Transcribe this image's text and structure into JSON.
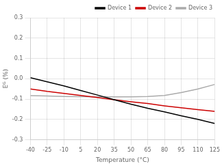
{
  "chart_data": {
    "type": "line",
    "xlabel": "Temperature (°C)",
    "ylabel": "Eᴳ (%)",
    "x": [
      -40,
      -25,
      -10,
      5,
      20,
      35,
      50,
      65,
      80,
      95,
      110,
      125
    ],
    "series": [
      {
        "name": "Device 1",
        "color": "#000000",
        "values": [
          0.005,
          -0.015,
          -0.035,
          -0.058,
          -0.08,
          -0.103,
          -0.125,
          -0.145,
          -0.163,
          -0.182,
          -0.2,
          -0.22
        ]
      },
      {
        "name": "Device 2",
        "color": "#cc0000",
        "values": [
          -0.05,
          -0.062,
          -0.072,
          -0.082,
          -0.092,
          -0.103,
          -0.113,
          -0.122,
          -0.133,
          -0.143,
          -0.152,
          -0.16
        ]
      },
      {
        "name": "Device 3",
        "color": "#aaaaaa",
        "values": [
          -0.083,
          -0.085,
          -0.087,
          -0.088,
          -0.089,
          -0.089,
          -0.089,
          -0.087,
          -0.082,
          -0.068,
          -0.05,
          -0.028
        ]
      }
    ],
    "xlim": [
      -40,
      125
    ],
    "ylim": [
      -0.3,
      0.3
    ],
    "xticks": [
      -40,
      -25,
      -10,
      5,
      20,
      35,
      50,
      65,
      80,
      95,
      110,
      125
    ],
    "yticks": [
      -0.3,
      -0.2,
      -0.1,
      {
        "value": 0.0,
        "label": "0.0"
      },
      0.1,
      0.2,
      0.3
    ],
    "grid": true,
    "legend": "upper right"
  }
}
